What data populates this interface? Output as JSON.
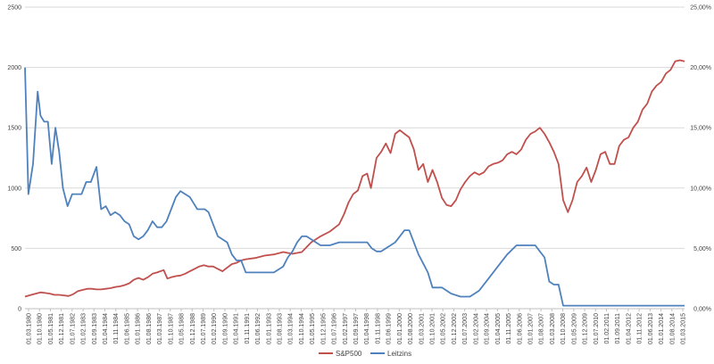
{
  "chart_data": {
    "type": "line",
    "title": "",
    "xlabel": "",
    "ylabel": "",
    "y_left": {
      "min": 0,
      "max": 2500,
      "ticks": [
        "0",
        "500",
        "1000",
        "1500",
        "2000",
        "2500"
      ]
    },
    "y_right": {
      "min": 0,
      "max": 25,
      "ticks": [
        "0,00%",
        "5,00%",
        "10,00%",
        "15,00%",
        "20,00%",
        "25,00%"
      ]
    },
    "grid": true,
    "legend_position": "bottom",
    "x_labels": [
      "01.03.1980",
      "01.10.1980",
      "01.05.1981",
      "01.12.1981",
      "01.07.1982",
      "01.02.1983",
      "01.09.1983",
      "01.04.1984",
      "01.11.1984",
      "01.06.1985",
      "01.01.1986",
      "01.08.1986",
      "01.03.1987",
      "01.10.1987",
      "01.05.1988",
      "01.12.1988",
      "01.07.1989",
      "01.02.1990",
      "01.09.1990",
      "01.04.1991",
      "01.11.1991",
      "01.06.1992",
      "01.01.1993",
      "01.08.1993",
      "01.03.1994",
      "01.10.1994",
      "01.05.1995",
      "01.12.1995",
      "01.07.1996",
      "01.02.1997",
      "01.09.1997",
      "01.04.1998",
      "01.11.1998",
      "01.06.1999",
      "01.01.2000",
      "01.08.2000",
      "01.03.2001",
      "01.10.2001",
      "01.05.2002",
      "01.12.2002",
      "01.07.2003",
      "01.02.2004",
      "01.09.2004",
      "01.04.2005",
      "01.11.2005",
      "01.06.2006",
      "01.01.2007",
      "01.08.2007",
      "01.03.2008",
      "01.10.2008",
      "01.05.2009",
      "01.12.2009",
      "01.07.2010",
      "01.02.2011",
      "01.09.2011",
      "01.04.2012",
      "01.11.2012",
      "01.06.2013",
      "01.01.2014",
      "01.08.2014",
      "01.03.2015"
    ],
    "x_range": [
      1980.17,
      2015.5
    ],
    "series": [
      {
        "name": "S&P500",
        "axis": "left",
        "color": "#c0504d",
        "x": [
          1980.17,
          1980.5,
          1980.75,
          1981.0,
          1981.25,
          1981.5,
          1981.75,
          1982.0,
          1982.25,
          1982.5,
          1982.75,
          1983.0,
          1983.25,
          1983.5,
          1983.75,
          1984.0,
          1984.25,
          1984.5,
          1984.75,
          1985.0,
          1985.25,
          1985.5,
          1985.75,
          1986.0,
          1986.25,
          1986.5,
          1986.75,
          1987.0,
          1987.25,
          1987.6,
          1987.8,
          1988.0,
          1988.25,
          1988.5,
          1988.75,
          1989.0,
          1989.25,
          1989.5,
          1989.75,
          1990.0,
          1990.25,
          1990.5,
          1990.75,
          1991.0,
          1991.25,
          1991.5,
          1991.75,
          1992.0,
          1992.5,
          1993.0,
          1993.5,
          1994.0,
          1994.5,
          1995.0,
          1995.5,
          1996.0,
          1996.5,
          1997.0,
          1997.25,
          1997.5,
          1997.75,
          1998.0,
          1998.25,
          1998.5,
          1998.7,
          1999.0,
          1999.25,
          1999.5,
          1999.75,
          2000.0,
          2000.25,
          2000.5,
          2000.75,
          2001.0,
          2001.25,
          2001.5,
          2001.75,
          2002.0,
          2002.25,
          2002.5,
          2002.75,
          2003.0,
          2003.25,
          2003.5,
          2003.75,
          2004.0,
          2004.25,
          2004.5,
          2004.75,
          2005.0,
          2005.25,
          2005.5,
          2005.75,
          2006.0,
          2006.25,
          2006.5,
          2006.75,
          2007.0,
          2007.25,
          2007.5,
          2007.75,
          2008.0,
          2008.25,
          2008.5,
          2008.75,
          2009.0,
          2009.25,
          2009.5,
          2009.75,
          2010.0,
          2010.25,
          2010.5,
          2010.75,
          2011.0,
          2011.25,
          2011.5,
          2011.75,
          2012.0,
          2012.25,
          2012.5,
          2012.75,
          2013.0,
          2013.25,
          2013.5,
          2013.75,
          2014.0,
          2014.25,
          2014.5,
          2014.75,
          2015.0,
          2015.25,
          2015.5
        ],
        "y": [
          100,
          115,
          125,
          135,
          130,
          125,
          115,
          115,
          110,
          105,
          120,
          145,
          155,
          165,
          165,
          160,
          160,
          165,
          170,
          180,
          185,
          195,
          210,
          240,
          255,
          240,
          260,
          290,
          300,
          320,
          250,
          260,
          270,
          275,
          290,
          310,
          330,
          350,
          360,
          350,
          350,
          330,
          310,
          340,
          370,
          380,
          400,
          410,
          420,
          440,
          450,
          470,
          455,
          470,
          550,
          600,
          640,
          700,
          780,
          880,
          950,
          980,
          1100,
          1120,
          1000,
          1250,
          1300,
          1370,
          1290,
          1450,
          1480,
          1450,
          1420,
          1320,
          1150,
          1200,
          1050,
          1150,
          1050,
          920,
          860,
          850,
          900,
          990,
          1050,
          1100,
          1130,
          1110,
          1130,
          1180,
          1200,
          1210,
          1230,
          1280,
          1300,
          1280,
          1320,
          1400,
          1450,
          1470,
          1500,
          1450,
          1380,
          1300,
          1200,
          900,
          800,
          900,
          1050,
          1100,
          1170,
          1050,
          1150,
          1280,
          1300,
          1200,
          1200,
          1350,
          1400,
          1420,
          1500,
          1550,
          1650,
          1700,
          1800,
          1850,
          1880,
          1950,
          1980,
          2050,
          2060,
          2050
        ]
      },
      {
        "name": "Leitzins",
        "axis": "right",
        "color": "#4f81bd",
        "x": [
          1980.17,
          1980.35,
          1980.6,
          1980.85,
          1981.0,
          1981.2,
          1981.4,
          1981.6,
          1981.8,
          1982.0,
          1982.2,
          1982.45,
          1982.7,
          1982.95,
          1983.2,
          1983.45,
          1983.7,
          1984.0,
          1984.25,
          1984.5,
          1984.75,
          1985.0,
          1985.25,
          1985.5,
          1985.75,
          1986.0,
          1986.25,
          1986.5,
          1986.75,
          1987.0,
          1987.25,
          1987.5,
          1987.75,
          1988.0,
          1988.25,
          1988.5,
          1988.75,
          1989.0,
          1989.2,
          1989.4,
          1989.6,
          1989.8,
          1990.0,
          1990.25,
          1990.5,
          1990.75,
          1991.0,
          1991.25,
          1991.5,
          1991.75,
          1992.0,
          1992.25,
          1992.5,
          1992.75,
          1993.0,
          1993.5,
          1994.0,
          1994.25,
          1994.5,
          1994.75,
          1995.0,
          1995.25,
          1995.5,
          1995.75,
          1996.0,
          1996.5,
          1997.0,
          1997.5,
          1998.0,
          1998.5,
          1998.75,
          1999.0,
          1999.25,
          1999.5,
          1999.75,
          2000.0,
          2000.25,
          2000.5,
          2000.75,
          2001.0,
          2001.25,
          2001.5,
          2001.75,
          2002.0,
          2002.5,
          2003.0,
          2003.5,
          2004.0,
          2004.5,
          2005.0,
          2005.5,
          2006.0,
          2006.5,
          2007.0,
          2007.5,
          2007.75,
          2008.0,
          2008.25,
          2008.5,
          2008.75,
          2009.0,
          2009.5,
          2010.0,
          2011.0,
          2012.0,
          2013.0,
          2014.0,
          2015.0,
          2015.5
        ],
        "y": [
          20,
          9.5,
          12,
          18,
          16,
          15.5,
          15.5,
          12,
          15,
          13,
          10,
          8.5,
          9.5,
          9.5,
          9.5,
          10.5,
          10.5,
          11.75,
          8.25,
          8.5,
          7.75,
          8,
          7.75,
          7.25,
          7,
          6,
          5.75,
          6,
          6.5,
          7.25,
          6.75,
          6.75,
          7.25,
          8.25,
          9.25,
          9.75,
          9.5,
          9.25,
          8.75,
          8.25,
          8.25,
          8.25,
          8,
          7,
          6,
          5.75,
          5.5,
          4.5,
          4,
          4,
          3,
          3,
          3,
          3,
          3,
          3,
          3.5,
          4.25,
          4.75,
          5.5,
          6,
          6,
          5.75,
          5.5,
          5.25,
          5.25,
          5.5,
          5.5,
          5.5,
          5.5,
          5,
          4.75,
          4.75,
          5,
          5.25,
          5.5,
          6,
          6.5,
          6.5,
          5.5,
          4.5,
          3.75,
          3,
          1.75,
          1.75,
          1.25,
          1,
          1,
          1.5,
          2.5,
          3.5,
          4.5,
          5.25,
          5.25,
          5.25,
          4.75,
          4.25,
          2.25,
          2,
          2,
          0.25,
          0.25,
          0.25,
          0.25,
          0.25,
          0.25,
          0.25,
          0.25,
          0.25
        ]
      }
    ]
  }
}
